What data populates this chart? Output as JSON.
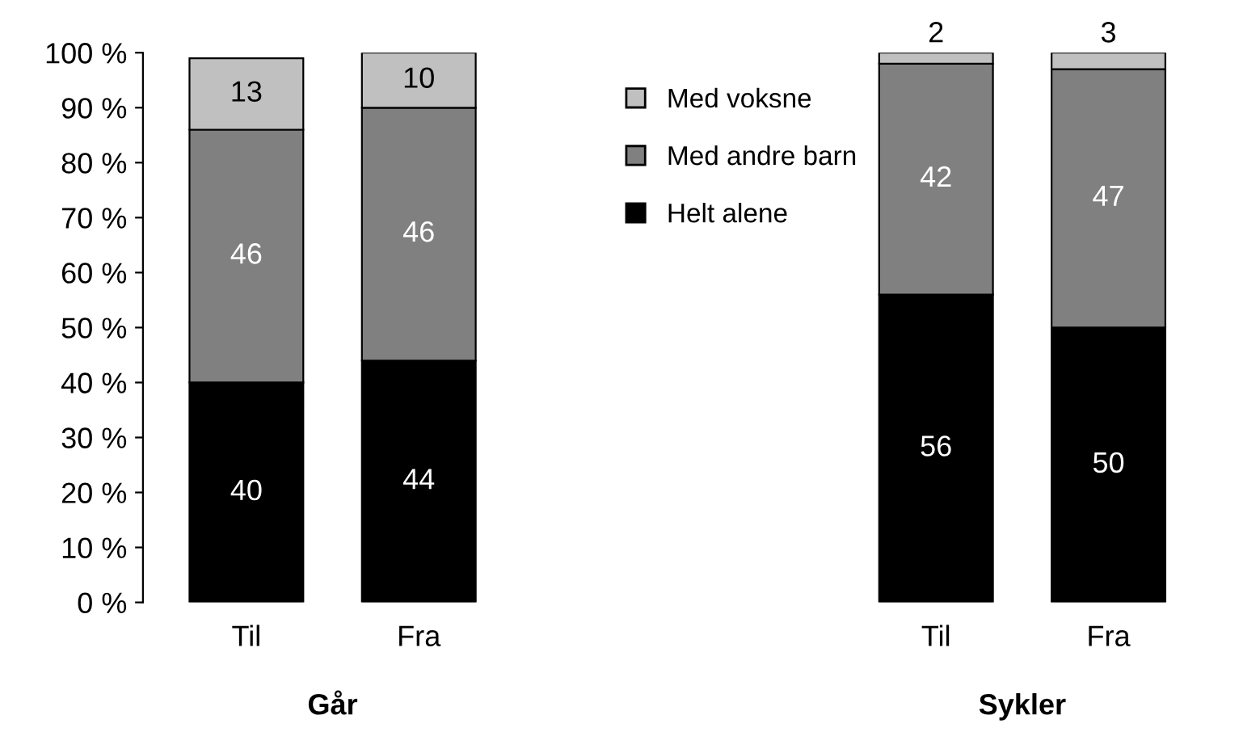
{
  "chart_data": {
    "type": "bar",
    "stacked": true,
    "categories": [
      "Til",
      "Fra",
      null,
      null,
      "Til",
      "Fra"
    ],
    "series": [
      {
        "name": "Helt alene",
        "color": "#000000",
        "values": [
          40,
          44,
          null,
          null,
          56,
          50
        ]
      },
      {
        "name": "Med andre barn",
        "color": "#808080",
        "values": [
          46,
          46,
          null,
          null,
          42,
          47
        ]
      },
      {
        "name": "Med voksne",
        "color": "#c0c0c0",
        "values": [
          13,
          10,
          null,
          null,
          2,
          3
        ]
      }
    ],
    "ylim": [
      0,
      100
    ],
    "yticks": [
      {
        "value": 0,
        "label": "0 %"
      },
      {
        "value": 10,
        "label": "10 %"
      },
      {
        "value": 20,
        "label": "20 %"
      },
      {
        "value": 30,
        "label": "30 %"
      },
      {
        "value": 40,
        "label": "40 %"
      },
      {
        "value": 50,
        "label": "50 %"
      },
      {
        "value": 60,
        "label": "60 %"
      },
      {
        "value": 70,
        "label": "70 %"
      },
      {
        "value": 80,
        "label": "80 %"
      },
      {
        "value": 90,
        "label": "90 %"
      },
      {
        "value": 100,
        "label": "100 %"
      }
    ],
    "data_labels": true,
    "legend": "top",
    "grid": false,
    "annotations": [
      "Går",
      "Sykler"
    ]
  }
}
